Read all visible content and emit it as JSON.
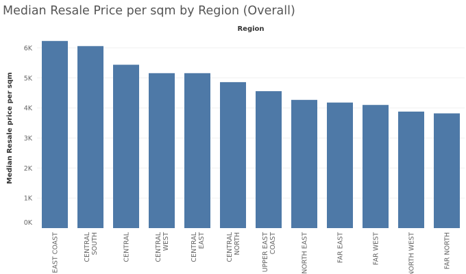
{
  "chart_data": {
    "type": "bar",
    "title": "Median Resale Price per sqm by Region (Overall)",
    "header_label": "Region",
    "ylabel": "Median Resale price per sqm",
    "xlabel": "",
    "categories": [
      [
        "EAST COAST"
      ],
      [
        "CENTRAL",
        "SOUTH"
      ],
      [
        "CENTRAL"
      ],
      [
        "CENTRAL",
        "WEST"
      ],
      [
        "CENTRAL",
        "EAST"
      ],
      [
        "CENTRAL",
        "NORTH"
      ],
      [
        "UPPER EAST",
        "COAST"
      ],
      [
        "NORTH EAST"
      ],
      [
        "FAR EAST"
      ],
      [
        "FAR WEST"
      ],
      [
        "NORTH WEST"
      ],
      [
        "FAR NORTH"
      ]
    ],
    "values": [
      6230,
      6060,
      5440,
      5160,
      5160,
      4860,
      4560,
      4270,
      4180,
      4100,
      3880,
      3820
    ],
    "ylim": [
      0,
      6500
    ],
    "yticks": [
      0,
      1000,
      2000,
      3000,
      4000,
      5000,
      6000
    ],
    "ytick_labels": [
      "0K",
      "1K",
      "2K",
      "3K",
      "4K",
      "5K",
      "6K"
    ],
    "grid": true,
    "bar_color": "#4e79a7"
  }
}
